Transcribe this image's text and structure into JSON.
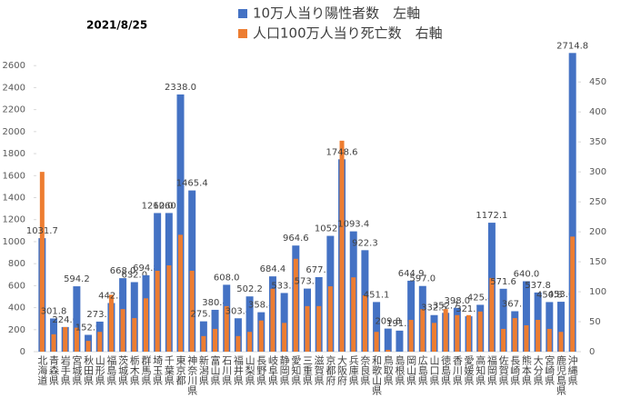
{
  "chart_data": {
    "type": "bar",
    "title": "2021/8/25",
    "categories": [
      "北海道",
      "青森県",
      "岩手県",
      "宮城県",
      "秋田県",
      "山形県",
      "福島県",
      "茨城県",
      "栃木県",
      "群馬県",
      "埼玉県",
      "千葉県",
      "東京都",
      "神奈川県",
      "新潟県",
      "富山県",
      "石川県",
      "福井県",
      "山梨県",
      "長野県",
      "岐阜県",
      "静岡県",
      "愛知県",
      "三重県",
      "滋賀県",
      "京都府",
      "大阪府",
      "兵庫県",
      "奈良県",
      "和歌山県",
      "鳥取県",
      "島根県",
      "岡山県",
      "広島県",
      "山口県",
      "徳島県",
      "香川県",
      "愛媛県",
      "高知県",
      "福岡県",
      "佐賀県",
      "長崎県",
      "熊本県",
      "大分県",
      "宮崎県",
      "鹿児島県",
      "沖縄県"
    ],
    "series": [
      {
        "name": "10万人当り陽性者数　左軸",
        "color": "#4472c4",
        "axis": "y",
        "values": [
          1031.7,
          301.8,
          224.0,
          594.2,
          152.9,
          273.1,
          442.2,
          668.0,
          632.0,
          694.8,
          1260.0,
          1260.3,
          2338.0,
          1465.4,
          275.6,
          380.4,
          608.0,
          303.4,
          502.2,
          358.4,
          684.4,
          533.2,
          964.6,
          573.3,
          677.5,
          1052.5,
          1748.6,
          1093.4,
          922.3,
          451.1,
          209.8,
          191.2,
          644.9,
          597.0,
          332.5,
          352.7,
          398.0,
          321.7,
          425.8,
          1172.1,
          571.6,
          367.6,
          640.0,
          537.8,
          450.8,
          453.6,
          2714.8
        ],
        "value_labels": [
          "1031.7",
          "301.8",
          "224.0",
          "594.2",
          "152.9",
          "273.1",
          "442.2",
          "668.0",
          "632.0",
          "694.8",
          "1260.0",
          "1260.3",
          "2338.0",
          "1465.4",
          "275.6",
          "380.4",
          "608.0",
          "303.4",
          "502.2",
          "358.4",
          "684.4",
          "533.2",
          "964.6",
          "573.3",
          "677.5",
          "1052.5",
          "1748.6",
          "1093.4",
          "922.3",
          "451.1",
          "209.8",
          "191.2",
          "644.9",
          "597.0",
          "332.5",
          "352.7",
          "398.0",
          "321.7",
          "425.8",
          "1172.1",
          "571.6",
          "367.6",
          "640.0",
          "537.8",
          "450.8",
          "453.6",
          "2714.8"
        ]
      },
      {
        "name": "人口100万人当り死亡数　右軸",
        "color": "#ed7d31",
        "axis": "y2",
        "values": [
          300,
          29,
          41,
          40,
          18,
          33,
          95,
          71,
          56,
          89,
          135,
          144,
          195,
          135,
          26,
          38,
          76,
          26,
          33,
          52,
          105,
          48,
          155,
          76,
          76,
          109,
          352,
          124,
          94,
          33,
          3,
          0,
          53,
          71,
          48,
          71,
          61,
          61,
          67,
          123,
          38,
          56,
          44,
          53,
          38,
          33,
          192
        ]
      }
    ],
    "ylim": [
      0,
      2800
    ],
    "yticks": [
      0,
      200,
      400,
      600,
      800,
      1000,
      1200,
      1400,
      1600,
      1800,
      2000,
      2200,
      2400,
      2600
    ],
    "y2lim": [
      0,
      514
    ],
    "y2ticks": [
      0,
      50,
      100,
      150,
      200,
      250,
      300,
      350,
      400,
      450
    ]
  }
}
